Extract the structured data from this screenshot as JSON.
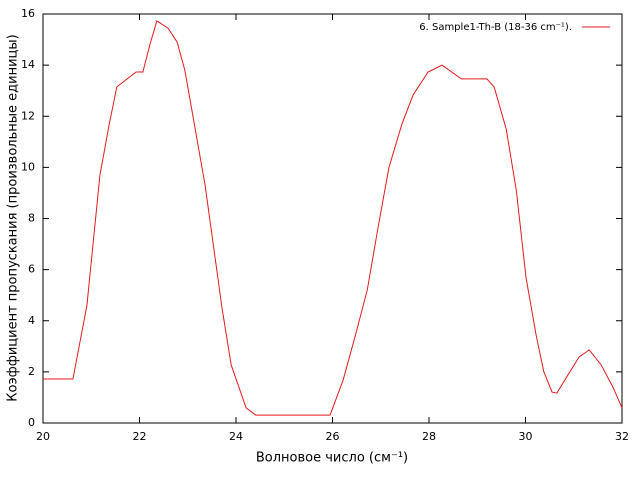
{
  "chart_data": {
    "type": "line",
    "xlabel": "Волновое число (см⁻¹)",
    "ylabel": "Коэффициент пропускания (произвольные единицы)",
    "x": [
      20,
      20.62,
      20.91,
      21.18,
      21.37,
      21.53,
      21.93,
      22.07,
      22.22,
      22.36,
      22.59,
      22.78,
      22.94,
      23.36,
      23.71,
      23.9,
      24.21,
      24.41,
      25.95,
      26.22,
      26.47,
      26.72,
      26.94,
      27.17,
      27.44,
      27.67,
      27.98,
      28.27,
      28.67,
      29.2,
      29.35,
      29.6,
      29.81,
      30.01,
      30.22,
      30.38,
      30.55,
      30.65,
      30.88,
      31.11,
      31.32,
      31.57,
      31.82,
      32
    ],
    "series": [
      {
        "name": "6. Sample1-Th-B (18-36 cm⁻¹).",
        "color": "#e41a1c",
        "values": [
          1.72,
          1.72,
          4.6,
          9.7,
          11.66,
          13.15,
          13.73,
          13.73,
          14.83,
          15.73,
          15.45,
          14.9,
          13.8,
          9.3,
          4.5,
          2.27,
          0.59,
          0.31,
          0.31,
          1.68,
          3.4,
          5.2,
          7.6,
          10,
          11.7,
          12.83,
          13.73,
          14.0,
          13.46,
          13.46,
          13.15,
          11.5,
          9.1,
          5.7,
          3.44,
          2.0,
          1.21,
          1.17,
          1.88,
          2.58,
          2.86,
          2.27,
          1.37,
          0.59
        ]
      }
    ],
    "xlim": [
      20,
      32
    ],
    "xticks": [
      20,
      22,
      24,
      26,
      28,
      30,
      32
    ],
    "ylim": [
      0,
      16
    ],
    "yticks": [
      0,
      2,
      4,
      6,
      8,
      10,
      12,
      14,
      16
    ],
    "legend": "upper right"
  }
}
